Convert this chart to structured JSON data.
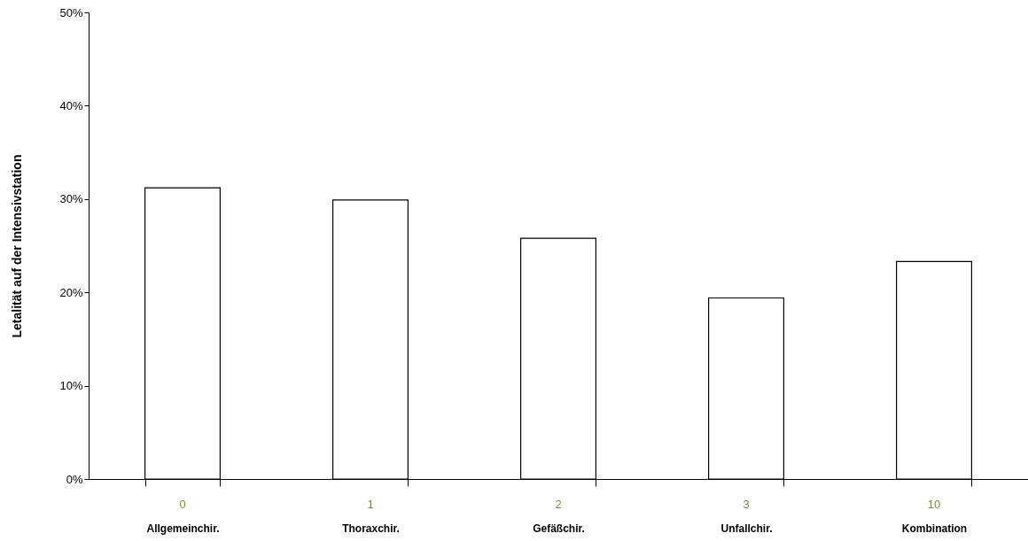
{
  "chart_data": {
    "type": "bar",
    "ylabel": "Letalität auf der Intensivstation",
    "categories": [
      "Allgemeinchir.",
      "Thoraxchir.",
      "Gefäßchir.",
      "Unfallchir.",
      "Kombination"
    ],
    "values": [
      31.2,
      29.9,
      25.8,
      19.4,
      23.3
    ],
    "color": "#ffffff",
    "ylim": [
      0,
      50
    ],
    "yticks": [
      {
        "value": 0,
        "label": "0%"
      },
      {
        "value": 10,
        "label": "10%"
      },
      {
        "value": 20,
        "label": "20%"
      },
      {
        "value": 30,
        "label": "30%"
      },
      {
        "value": 40,
        "label": "40%"
      },
      {
        "value": 50,
        "label": "50%"
      }
    ],
    "annotations": [
      "0",
      "1",
      "2",
      "3",
      "10"
    ],
    "grid": false
  }
}
